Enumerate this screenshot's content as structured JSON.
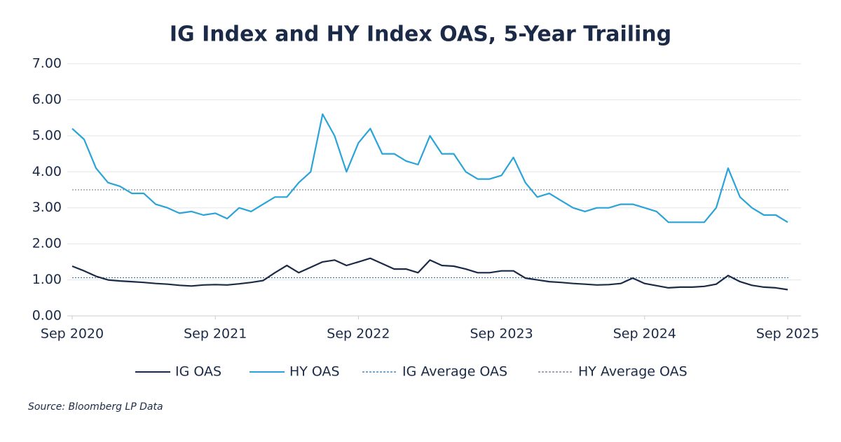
{
  "chart_data": {
    "type": "line",
    "title": "IG Index and HY Index OAS, 5-Year Trailing",
    "source": "Source: Bloomberg LP Data",
    "x": [
      "2020-09",
      "2020-10",
      "2020-11",
      "2020-12",
      "2021-01",
      "2021-02",
      "2021-03",
      "2021-04",
      "2021-05",
      "2021-06",
      "2021-07",
      "2021-08",
      "2021-09",
      "2021-10",
      "2021-11",
      "2021-12",
      "2022-01",
      "2022-02",
      "2022-03",
      "2022-04",
      "2022-05",
      "2022-06",
      "2022-07",
      "2022-08",
      "2022-09",
      "2022-10",
      "2022-11",
      "2022-12",
      "2023-01",
      "2023-02",
      "2023-03",
      "2023-04",
      "2023-05",
      "2023-06",
      "2023-07",
      "2023-08",
      "2023-09",
      "2023-10",
      "2023-11",
      "2023-12",
      "2024-01",
      "2024-02",
      "2024-03",
      "2024-04",
      "2024-05",
      "2024-06",
      "2024-07",
      "2024-08",
      "2024-09",
      "2024-10",
      "2024-11",
      "2024-12",
      "2025-01",
      "2025-02",
      "2025-03",
      "2025-04",
      "2025-05",
      "2025-06",
      "2025-07",
      "2025-08",
      "2025-09"
    ],
    "series": [
      {
        "name": "IG OAS",
        "color": "#1b2a47",
        "values": [
          1.38,
          1.25,
          1.1,
          1.0,
          0.97,
          0.95,
          0.93,
          0.9,
          0.88,
          0.85,
          0.83,
          0.86,
          0.87,
          0.86,
          0.89,
          0.93,
          0.98,
          1.2,
          1.4,
          1.2,
          1.35,
          1.5,
          1.55,
          1.4,
          1.5,
          1.6,
          1.45,
          1.3,
          1.3,
          1.2,
          1.55,
          1.4,
          1.38,
          1.3,
          1.2,
          1.2,
          1.25,
          1.25,
          1.05,
          1.0,
          0.95,
          0.93,
          0.9,
          0.88,
          0.86,
          0.87,
          0.9,
          1.05,
          0.9,
          0.84,
          0.78,
          0.8,
          0.8,
          0.82,
          0.88,
          1.12,
          0.95,
          0.85,
          0.8,
          0.78,
          0.73
        ]
      },
      {
        "name": "HY OAS",
        "color": "#2aa4d8",
        "values": [
          5.2,
          4.9,
          4.1,
          3.7,
          3.6,
          3.4,
          3.4,
          3.1,
          3.0,
          2.85,
          2.9,
          2.8,
          2.85,
          2.7,
          3.0,
          2.9,
          3.1,
          3.3,
          3.3,
          3.7,
          4.0,
          5.6,
          5.0,
          4.0,
          4.8,
          5.2,
          4.5,
          4.5,
          4.3,
          4.2,
          5.0,
          4.5,
          4.5,
          4.0,
          3.8,
          3.8,
          3.9,
          4.4,
          3.7,
          3.3,
          3.4,
          3.2,
          3.0,
          2.9,
          3.0,
          3.0,
          3.1,
          3.1,
          3.0,
          2.9,
          2.6,
          2.6,
          2.6,
          2.6,
          3.0,
          4.1,
          3.3,
          3.0,
          2.8,
          2.8,
          2.6
        ]
      }
    ],
    "reference_lines": [
      {
        "name": "IG Average OAS",
        "value": 1.06,
        "color": "#2a6fa8"
      },
      {
        "name": "HY Average OAS",
        "value": 3.5,
        "color": "#6b7380"
      }
    ],
    "xlim": [
      "2020-09",
      "2025-09"
    ],
    "xticks": [
      {
        "value": "2020-09",
        "label": "Sep 2020"
      },
      {
        "value": "2021-09",
        "label": "Sep 2021"
      },
      {
        "value": "2022-09",
        "label": "Sep 2022"
      },
      {
        "value": "2023-09",
        "label": "Sep 2023"
      },
      {
        "value": "2024-09",
        "label": "Sep 2024"
      },
      {
        "value": "2025-09",
        "label": "Sep 2025"
      }
    ],
    "ylim": [
      0,
      7
    ],
    "yticks": [
      {
        "value": 0,
        "label": "0.00"
      },
      {
        "value": 1,
        "label": "1.00"
      },
      {
        "value": 2,
        "label": "2.00"
      },
      {
        "value": 3,
        "label": "3.00"
      },
      {
        "value": 4,
        "label": "4.00"
      },
      {
        "value": 5,
        "label": "5.00"
      },
      {
        "value": 6,
        "label": "6.00"
      },
      {
        "value": 7,
        "label": "7.00"
      }
    ],
    "grid": true
  }
}
